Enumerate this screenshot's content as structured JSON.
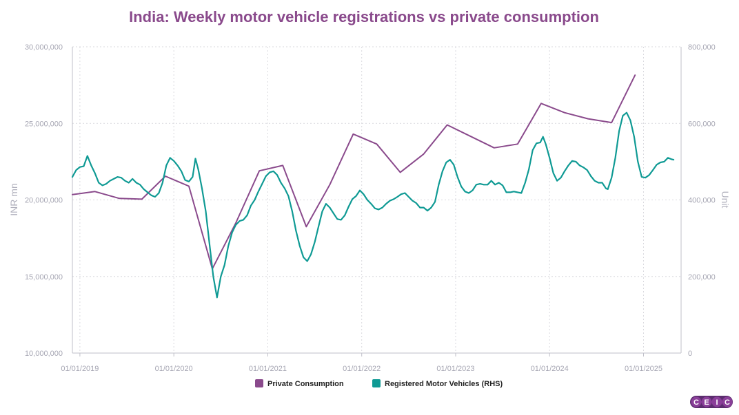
{
  "chart_data": {
    "type": "line",
    "title": "India: Weekly motor vehicle registrations vs private consumption",
    "y_left_label": "INR mn",
    "y_right_label": "Unit",
    "y_left_lim": [
      10000000,
      30000000
    ],
    "y_right_lim": [
      0,
      800000
    ],
    "y_left_ticks": [
      "10,000,000",
      "15,000,000",
      "20,000,000",
      "25,000,000",
      "30,000,000"
    ],
    "y_right_ticks": [
      "0",
      "200,000",
      "400,000",
      "600,000",
      "800,000"
    ],
    "x_tick_labels": [
      "01/01/2019",
      "01/01/2020",
      "01/01/2021",
      "01/01/2022",
      "01/01/2023",
      "01/01/2024",
      "01/01/2025"
    ],
    "x_range_years": [
      2018.92,
      2025.4
    ],
    "series": [
      {
        "name": "Private Consumption",
        "axis": "left",
        "color": "#8a4a8c",
        "points": [
          [
            2018.92,
            20350000
          ],
          [
            2019.16,
            20550000
          ],
          [
            2019.42,
            20100000
          ],
          [
            2019.66,
            20050000
          ],
          [
            2019.91,
            21550000
          ],
          [
            2020.16,
            20900000
          ],
          [
            2020.41,
            15500000
          ],
          [
            2020.66,
            18500000
          ],
          [
            2020.91,
            21900000
          ],
          [
            2021.16,
            22250000
          ],
          [
            2021.41,
            18250000
          ],
          [
            2021.66,
            21000000
          ],
          [
            2021.91,
            24300000
          ],
          [
            2022.16,
            23650000
          ],
          [
            2022.41,
            21800000
          ],
          [
            2022.66,
            23000000
          ],
          [
            2022.91,
            24900000
          ],
          [
            2023.16,
            24150000
          ],
          [
            2023.41,
            23400000
          ],
          [
            2023.66,
            23650000
          ],
          [
            2023.91,
            26300000
          ],
          [
            2024.16,
            25700000
          ],
          [
            2024.41,
            25300000
          ],
          [
            2024.66,
            25050000
          ],
          [
            2024.91,
            28150000
          ]
        ]
      },
      {
        "name": "Registered Motor Vehicles (RHS)",
        "axis": "right",
        "color": "#0f9a94",
        "points": [
          [
            2018.92,
            460000
          ],
          [
            2018.96,
            478000
          ],
          [
            2019.0,
            486000
          ],
          [
            2019.04,
            488000
          ],
          [
            2019.08,
            515000
          ],
          [
            2019.12,
            490000
          ],
          [
            2019.16,
            470000
          ],
          [
            2019.2,
            445000
          ],
          [
            2019.24,
            438000
          ],
          [
            2019.28,
            442000
          ],
          [
            2019.32,
            450000
          ],
          [
            2019.36,
            455000
          ],
          [
            2019.4,
            460000
          ],
          [
            2019.44,
            458000
          ],
          [
            2019.48,
            450000
          ],
          [
            2019.52,
            445000
          ],
          [
            2019.56,
            455000
          ],
          [
            2019.6,
            445000
          ],
          [
            2019.64,
            440000
          ],
          [
            2019.68,
            428000
          ],
          [
            2019.72,
            420000
          ],
          [
            2019.76,
            412000
          ],
          [
            2019.8,
            408000
          ],
          [
            2019.84,
            418000
          ],
          [
            2019.88,
            445000
          ],
          [
            2019.92,
            490000
          ],
          [
            2019.96,
            510000
          ],
          [
            2020.0,
            502000
          ],
          [
            2020.04,
            490000
          ],
          [
            2020.08,
            475000
          ],
          [
            2020.12,
            452000
          ],
          [
            2020.16,
            448000
          ],
          [
            2020.2,
            460000
          ],
          [
            2020.23,
            508000
          ],
          [
            2020.26,
            480000
          ],
          [
            2020.3,
            430000
          ],
          [
            2020.34,
            370000
          ],
          [
            2020.38,
            285000
          ],
          [
            2020.42,
            200000
          ],
          [
            2020.46,
            145000
          ],
          [
            2020.5,
            200000
          ],
          [
            2020.54,
            230000
          ],
          [
            2020.58,
            280000
          ],
          [
            2020.62,
            315000
          ],
          [
            2020.66,
            335000
          ],
          [
            2020.7,
            345000
          ],
          [
            2020.74,
            348000
          ],
          [
            2020.78,
            360000
          ],
          [
            2020.82,
            385000
          ],
          [
            2020.86,
            400000
          ],
          [
            2020.9,
            422000
          ],
          [
            2020.94,
            442000
          ],
          [
            2020.98,
            462000
          ],
          [
            2021.02,
            472000
          ],
          [
            2021.06,
            475000
          ],
          [
            2021.1,
            465000
          ],
          [
            2021.14,
            445000
          ],
          [
            2021.18,
            430000
          ],
          [
            2021.22,
            410000
          ],
          [
            2021.26,
            370000
          ],
          [
            2021.3,
            320000
          ],
          [
            2021.34,
            280000
          ],
          [
            2021.38,
            250000
          ],
          [
            2021.42,
            240000
          ],
          [
            2021.46,
            258000
          ],
          [
            2021.5,
            290000
          ],
          [
            2021.54,
            330000
          ],
          [
            2021.58,
            370000
          ],
          [
            2021.62,
            390000
          ],
          [
            2021.66,
            380000
          ],
          [
            2021.7,
            365000
          ],
          [
            2021.74,
            350000
          ],
          [
            2021.78,
            348000
          ],
          [
            2021.82,
            360000
          ],
          [
            2021.86,
            382000
          ],
          [
            2021.9,
            402000
          ],
          [
            2021.94,
            410000
          ],
          [
            2021.98,
            425000
          ],
          [
            2022.02,
            415000
          ],
          [
            2022.06,
            400000
          ],
          [
            2022.1,
            390000
          ],
          [
            2022.14,
            378000
          ],
          [
            2022.18,
            375000
          ],
          [
            2022.22,
            380000
          ],
          [
            2022.26,
            390000
          ],
          [
            2022.3,
            398000
          ],
          [
            2022.34,
            402000
          ],
          [
            2022.38,
            408000
          ],
          [
            2022.42,
            415000
          ],
          [
            2022.46,
            418000
          ],
          [
            2022.5,
            408000
          ],
          [
            2022.54,
            398000
          ],
          [
            2022.58,
            392000
          ],
          [
            2022.62,
            380000
          ],
          [
            2022.66,
            380000
          ],
          [
            2022.7,
            372000
          ],
          [
            2022.74,
            380000
          ],
          [
            2022.78,
            395000
          ],
          [
            2022.82,
            440000
          ],
          [
            2022.86,
            475000
          ],
          [
            2022.9,
            498000
          ],
          [
            2022.94,
            505000
          ],
          [
            2022.98,
            492000
          ],
          [
            2023.02,
            460000
          ],
          [
            2023.06,
            435000
          ],
          [
            2023.1,
            422000
          ],
          [
            2023.14,
            418000
          ],
          [
            2023.18,
            425000
          ],
          [
            2023.22,
            440000
          ],
          [
            2023.26,
            442000
          ],
          [
            2023.3,
            440000
          ],
          [
            2023.34,
            440000
          ],
          [
            2023.38,
            450000
          ],
          [
            2023.42,
            440000
          ],
          [
            2023.46,
            445000
          ],
          [
            2023.5,
            438000
          ],
          [
            2023.54,
            420000
          ],
          [
            2023.58,
            420000
          ],
          [
            2023.62,
            422000
          ],
          [
            2023.66,
            420000
          ],
          [
            2023.7,
            418000
          ],
          [
            2023.74,
            445000
          ],
          [
            2023.78,
            480000
          ],
          [
            2023.82,
            530000
          ],
          [
            2023.86,
            548000
          ],
          [
            2023.9,
            550000
          ],
          [
            2023.93,
            565000
          ],
          [
            2023.96,
            545000
          ],
          [
            2024.0,
            510000
          ],
          [
            2024.04,
            470000
          ],
          [
            2024.08,
            450000
          ],
          [
            2024.12,
            458000
          ],
          [
            2024.16,
            475000
          ],
          [
            2024.2,
            490000
          ],
          [
            2024.24,
            502000
          ],
          [
            2024.28,
            500000
          ],
          [
            2024.32,
            490000
          ],
          [
            2024.36,
            485000
          ],
          [
            2024.4,
            478000
          ],
          [
            2024.44,
            462000
          ],
          [
            2024.48,
            450000
          ],
          [
            2024.52,
            445000
          ],
          [
            2024.56,
            445000
          ],
          [
            2024.6,
            430000
          ],
          [
            2024.62,
            428000
          ],
          [
            2024.66,
            458000
          ],
          [
            2024.7,
            510000
          ],
          [
            2024.74,
            580000
          ],
          [
            2024.78,
            620000
          ],
          [
            2024.82,
            628000
          ],
          [
            2024.86,
            608000
          ],
          [
            2024.9,
            565000
          ],
          [
            2024.94,
            500000
          ],
          [
            2024.98,
            460000
          ],
          [
            2025.02,
            458000
          ],
          [
            2025.06,
            465000
          ],
          [
            2025.1,
            478000
          ],
          [
            2025.14,
            492000
          ],
          [
            2025.18,
            498000
          ],
          [
            2025.22,
            500000
          ],
          [
            2025.26,
            510000
          ],
          [
            2025.3,
            506000
          ],
          [
            2025.32,
            505000
          ]
        ]
      }
    ],
    "legend": [
      {
        "label": "Private Consumption",
        "color": "#8a4a8c"
      },
      {
        "label": "Registered Motor Vehicles (RHS)",
        "color": "#0f9a94"
      }
    ]
  },
  "colors": {
    "title": "#8a4a8c",
    "logo_bg": "#5b2d6e",
    "logo_circle": "#8a3f99"
  },
  "branding": {
    "logo_letters": [
      "C",
      "E",
      "I",
      "C"
    ]
  }
}
